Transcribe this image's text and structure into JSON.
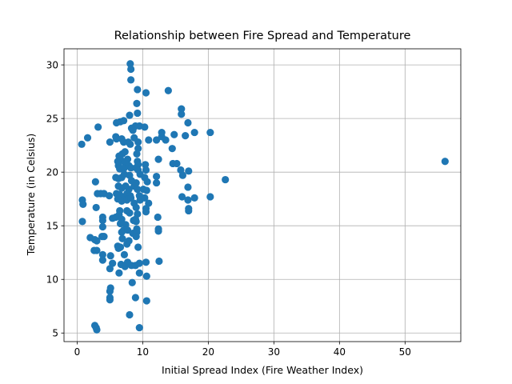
{
  "chart_data": {
    "type": "scatter",
    "title": "Relationship between Fire Spread and Temperature",
    "xlabel": "Initial Spread Index (Fire Weather Index)",
    "ylabel": "Temperature (in Celsius)",
    "xlim": [
      -2,
      58.5
    ],
    "ylim": [
      4.2,
      31.5
    ],
    "xticks": [
      0,
      10,
      20,
      30,
      40,
      50
    ],
    "yticks": [
      5,
      10,
      15,
      20,
      25,
      30
    ],
    "grid": true,
    "marker_color": "#1f77b4",
    "points": [
      [
        0.7,
        22.6
      ],
      [
        1.6,
        23.2
      ],
      [
        3.2,
        24.2
      ],
      [
        0.8,
        17.4
      ],
      [
        0.9,
        17.0
      ],
      [
        0.8,
        15.4
      ],
      [
        2.8,
        19.1
      ],
      [
        2.9,
        16.7
      ],
      [
        3.1,
        18.0
      ],
      [
        3.6,
        18.0
      ],
      [
        4.1,
        18.0
      ],
      [
        4.9,
        17.8
      ],
      [
        2.0,
        13.9
      ],
      [
        2.7,
        13.7
      ],
      [
        3.0,
        13.6
      ],
      [
        3.8,
        14.0
      ],
      [
        4.1,
        14.0
      ],
      [
        3.9,
        14.9
      ],
      [
        3.9,
        15.5
      ],
      [
        3.9,
        15.8
      ],
      [
        2.6,
        12.7
      ],
      [
        3.0,
        12.7
      ],
      [
        3.9,
        12.3
      ],
      [
        3.9,
        11.8
      ],
      [
        5.1,
        12.2
      ],
      [
        5.4,
        11.5
      ],
      [
        5.0,
        11.0
      ],
      [
        5.1,
        9.2
      ],
      [
        5.0,
        8.9
      ],
      [
        5.0,
        8.3
      ],
      [
        5.0,
        8.1
      ],
      [
        2.7,
        5.7
      ],
      [
        2.9,
        5.5
      ],
      [
        3.0,
        5.3
      ],
      [
        5.0,
        22.8
      ],
      [
        5.4,
        15.7
      ],
      [
        5.9,
        15.8
      ],
      [
        6.4,
        16.0
      ],
      [
        6.8,
        15.6
      ],
      [
        6.0,
        24.6
      ],
      [
        6.6,
        24.7
      ],
      [
        7.1,
        24.8
      ],
      [
        5.9,
        23.3
      ],
      [
        6.0,
        23.1
      ],
      [
        6.8,
        23.1
      ],
      [
        7.1,
        22.8
      ],
      [
        7.8,
        22.8
      ],
      [
        8.1,
        22.6
      ],
      [
        6.4,
        21.5
      ],
      [
        6.9,
        21.7
      ],
      [
        7.3,
        21.9
      ],
      [
        7.7,
        21.2
      ],
      [
        6.2,
        21.0
      ],
      [
        6.7,
        21.1
      ],
      [
        7.3,
        20.9
      ],
      [
        6.3,
        20.6
      ],
      [
        6.5,
        20.3
      ],
      [
        7.2,
        20.4
      ],
      [
        7.9,
        20.6
      ],
      [
        8.2,
        20.4
      ],
      [
        5.9,
        19.5
      ],
      [
        6.3,
        19.4
      ],
      [
        6.8,
        19.5
      ],
      [
        7.2,
        19.8
      ],
      [
        8.0,
        19.7
      ],
      [
        8.3,
        19.2
      ],
      [
        6.3,
        18.7
      ],
      [
        6.8,
        18.5
      ],
      [
        7.4,
        18.7
      ],
      [
        7.9,
        18.4
      ],
      [
        6.0,
        18.0
      ],
      [
        6.5,
        17.9
      ],
      [
        7.1,
        17.7
      ],
      [
        7.6,
        18.0
      ],
      [
        8.1,
        17.8
      ],
      [
        6.2,
        17.5
      ],
      [
        6.8,
        17.3
      ],
      [
        7.6,
        17.4
      ],
      [
        8.2,
        17.6
      ],
      [
        8.7,
        17.1
      ],
      [
        6.5,
        16.4
      ],
      [
        7.6,
        16.4
      ],
      [
        8.0,
        16.2
      ],
      [
        6.6,
        15.2
      ],
      [
        7.4,
        15.1
      ],
      [
        8.6,
        15.5
      ],
      [
        6.8,
        14.4
      ],
      [
        7.1,
        14.6
      ],
      [
        7.7,
        14.6
      ],
      [
        8.5,
        14.3
      ],
      [
        6.9,
        13.8
      ],
      [
        6.2,
        13.1
      ],
      [
        6.6,
        13.0
      ],
      [
        6.3,
        12.9
      ],
      [
        7.6,
        13.3
      ],
      [
        7.9,
        13.6
      ],
      [
        7.2,
        12.3
      ],
      [
        6.7,
        11.4
      ],
      [
        7.7,
        11.6
      ],
      [
        7.3,
        11.2
      ],
      [
        8.3,
        11.3
      ],
      [
        6.4,
        10.6
      ],
      [
        8.4,
        9.7
      ],
      [
        8.0,
        6.7
      ],
      [
        8.1,
        30.1
      ],
      [
        8.2,
        29.6
      ],
      [
        8.2,
        28.6
      ],
      [
        9.2,
        27.7
      ],
      [
        9.1,
        26.4
      ],
      [
        9.2,
        25.5
      ],
      [
        8.0,
        25.3
      ],
      [
        8.9,
        24.3
      ],
      [
        9.5,
        24.3
      ],
      [
        8.3,
        24.1
      ],
      [
        8.5,
        23.9
      ],
      [
        8.7,
        23.2
      ],
      [
        9.3,
        22.8
      ],
      [
        9.3,
        22.2
      ],
      [
        9.1,
        21.7
      ],
      [
        9.2,
        21.0
      ],
      [
        9.3,
        20.7
      ],
      [
        9.0,
        20.4
      ],
      [
        9.3,
        20.2
      ],
      [
        9.6,
        19.8
      ],
      [
        9.0,
        19.0
      ],
      [
        8.7,
        18.7
      ],
      [
        9.2,
        18.4
      ],
      [
        9.5,
        17.8
      ],
      [
        9.6,
        17.4
      ],
      [
        9.0,
        16.7
      ],
      [
        9.2,
        16.1
      ],
      [
        8.9,
        15.6
      ],
      [
        9.0,
        15.4
      ],
      [
        9.1,
        14.7
      ],
      [
        9.1,
        14.4
      ],
      [
        9.0,
        14.0
      ],
      [
        9.3,
        13.0
      ],
      [
        8.9,
        11.3
      ],
      [
        9.5,
        11.5
      ],
      [
        9.5,
        10.6
      ],
      [
        8.9,
        8.3
      ],
      [
        9.5,
        5.5
      ],
      [
        10.5,
        27.4
      ],
      [
        10.3,
        24.2
      ],
      [
        10.9,
        23.0
      ],
      [
        10.4,
        20.7
      ],
      [
        10.5,
        20.2
      ],
      [
        10.3,
        19.5
      ],
      [
        10.7,
        19.1
      ],
      [
        10.1,
        18.4
      ],
      [
        10.6,
        18.3
      ],
      [
        10.3,
        17.6
      ],
      [
        10.9,
        17.1
      ],
      [
        10.5,
        16.6
      ],
      [
        10.5,
        16.3
      ],
      [
        10.5,
        11.6
      ],
      [
        10.6,
        10.3
      ],
      [
        10.6,
        8.0
      ],
      [
        13.9,
        27.6
      ],
      [
        12.1,
        23.0
      ],
      [
        12.9,
        23.3
      ],
      [
        12.9,
        23.7
      ],
      [
        13.5,
        23.0
      ],
      [
        14.8,
        23.5
      ],
      [
        14.5,
        22.2
      ],
      [
        12.4,
        21.2
      ],
      [
        14.6,
        20.8
      ],
      [
        15.2,
        20.8
      ],
      [
        12.1,
        19.6
      ],
      [
        12.1,
        19.0
      ],
      [
        12.3,
        15.8
      ],
      [
        12.4,
        14.7
      ],
      [
        12.4,
        14.5
      ],
      [
        12.5,
        11.7
      ],
      [
        15.9,
        25.9
      ],
      [
        15.9,
        25.4
      ],
      [
        16.9,
        24.6
      ],
      [
        16.5,
        23.4
      ],
      [
        17.9,
        23.7
      ],
      [
        15.8,
        20.2
      ],
      [
        17.0,
        20.1
      ],
      [
        16.1,
        19.7
      ],
      [
        16.9,
        18.6
      ],
      [
        16.0,
        17.7
      ],
      [
        16.9,
        17.4
      ],
      [
        17.9,
        17.6
      ],
      [
        17.0,
        16.6
      ],
      [
        17.0,
        16.4
      ],
      [
        20.3,
        23.7
      ],
      [
        20.3,
        17.7
      ],
      [
        22.6,
        19.3
      ],
      [
        56.1,
        21.0
      ]
    ]
  }
}
